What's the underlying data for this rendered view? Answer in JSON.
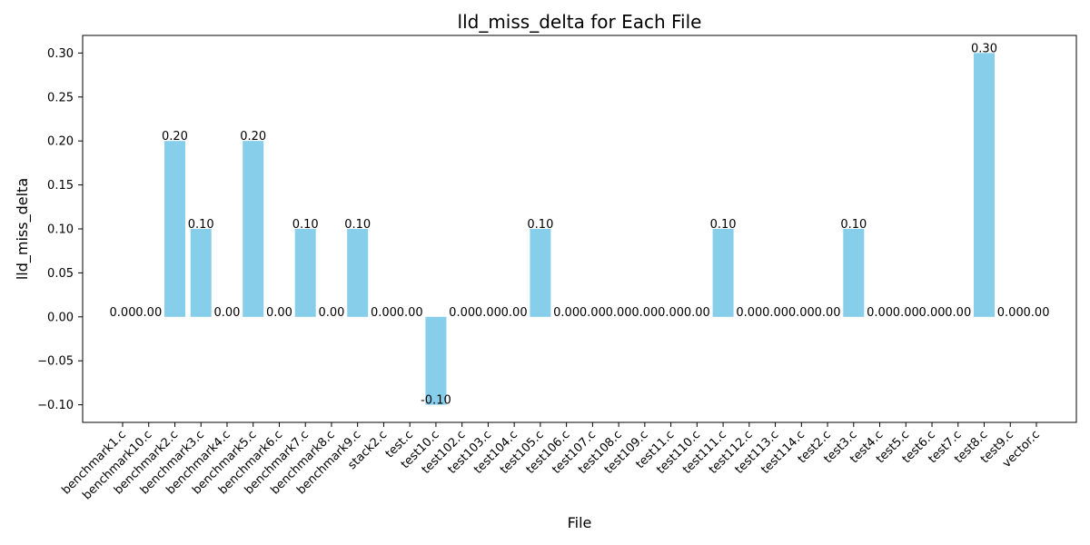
{
  "chart_data": {
    "type": "bar",
    "title": "lld_miss_delta for Each File",
    "xlabel": "File",
    "ylabel": "lld_miss_delta",
    "ylim": [
      -0.12,
      0.32
    ],
    "yticks": [
      "−0.10",
      "−0.05",
      "0.00",
      "0.05",
      "0.10",
      "0.15",
      "0.20",
      "0.25",
      "0.30"
    ],
    "ytick_values": [
      -0.1,
      -0.05,
      0.0,
      0.05,
      0.1,
      0.15,
      0.2,
      0.25,
      0.3
    ],
    "bar_color": "#87ceeb",
    "grid": false,
    "categories": [
      "benchmark1.c",
      "benchmark10.c",
      "benchmark2.c",
      "benchmark3.c",
      "benchmark4.c",
      "benchmark5.c",
      "benchmark6.c",
      "benchmark7.c",
      "benchmark8.c",
      "benchmark9.c",
      "stack2.c",
      "test.c",
      "test10.c",
      "test102.c",
      "test103.c",
      "test104.c",
      "test105.c",
      "test106.c",
      "test107.c",
      "test108.c",
      "test109.c",
      "test11.c",
      "test110.c",
      "test111.c",
      "test112.c",
      "test113.c",
      "test114.c",
      "test2.c",
      "test3.c",
      "test4.c",
      "test5.c",
      "test6.c",
      "test7.c",
      "test8.c",
      "test9.c",
      "vector.c"
    ],
    "values": [
      0.0,
      0.0,
      0.2,
      0.1,
      0.0,
      0.2,
      0.0,
      0.1,
      0.0,
      0.1,
      0.0,
      0.0,
      -0.1,
      0.0,
      0.0,
      0.0,
      0.1,
      0.0,
      0.0,
      0.0,
      0.0,
      0.0,
      0.0,
      0.1,
      0.0,
      0.0,
      0.0,
      0.0,
      0.1,
      0.0,
      0.0,
      0.0,
      0.0,
      0.3,
      0.0,
      0.0
    ],
    "data_labels": [
      "0.00",
      "0.00",
      "0.20",
      "0.10",
      "0.00",
      "0.20",
      "0.00",
      "0.10",
      "0.00",
      "0.10",
      "0.00",
      "0.00",
      "-0.10",
      "0.00",
      "0.00",
      "0.00",
      "0.10",
      "0.00",
      "0.00",
      "0.00",
      "0.00",
      "0.00",
      "0.00",
      "0.10",
      "0.00",
      "0.00",
      "0.00",
      "0.00",
      "0.10",
      "0.00",
      "0.00",
      "0.00",
      "0.00",
      "0.30",
      "0.00",
      "0.00"
    ]
  }
}
